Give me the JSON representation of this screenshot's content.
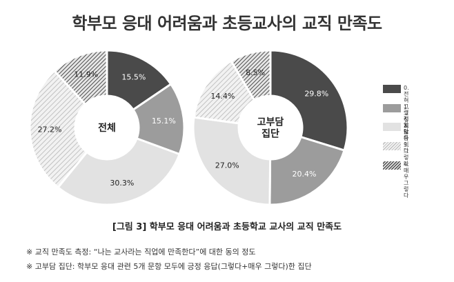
{
  "title": "학부모 응대 어려움과 초등교사의 교직 만족도",
  "caption": "[그림 3] 학부모 응대 어려움과 초등학교 교사의 교직 만족도",
  "notes": [
    "※ 교직 만족도 측정: “나는 교사라는 직업에 만족한다”에 대한 동의 정도",
    "※ 고부담 집단: 학부모 응대 관련 5개 문항 모두에 긍정 응답(그렇다+매우 그렇다)한 집단"
  ],
  "legend": [
    {
      "label": "0. 전혀\n그렇지 않다",
      "fill": "solid-dark",
      "color": "#4a4a4a"
    },
    {
      "label": "1. 그렇지 않다",
      "fill": "solid-mid",
      "color": "#9c9c9c"
    },
    {
      "label": "2. 보통이다",
      "fill": "solid-light",
      "color": "#e2e2e2"
    },
    {
      "label": "3. 그렇다",
      "fill": "stripe-light",
      "color": "#bdbdbd"
    },
    {
      "label": "4. 매우 그렇다",
      "fill": "stripe-dark",
      "color": "#5a5a5a"
    }
  ],
  "chart_data": [
    {
      "type": "pie",
      "title": "전체",
      "categories": [
        "0. 전혀 그렇지 않다",
        "1. 그렇지 않다",
        "2. 보통이다",
        "3. 그렇다",
        "4. 매우 그렇다"
      ],
      "values": [
        15.5,
        15.1,
        30.3,
        27.2,
        11.9
      ],
      "labels": [
        "15.5%",
        "15.1%",
        "30.3%",
        "27.2%",
        "11.9%"
      ]
    },
    {
      "type": "pie",
      "title": "고부담\n집단",
      "categories": [
        "0. 전혀 그렇지 않다",
        "1. 그렇지 않다",
        "2. 보통이다",
        "3. 그렇다",
        "4. 매우 그렇다"
      ],
      "values": [
        29.8,
        20.4,
        27.0,
        14.4,
        8.5
      ],
      "labels": [
        "29.8%",
        "20.4%",
        "27.0%",
        "14.4%",
        "8.5%"
      ]
    }
  ]
}
